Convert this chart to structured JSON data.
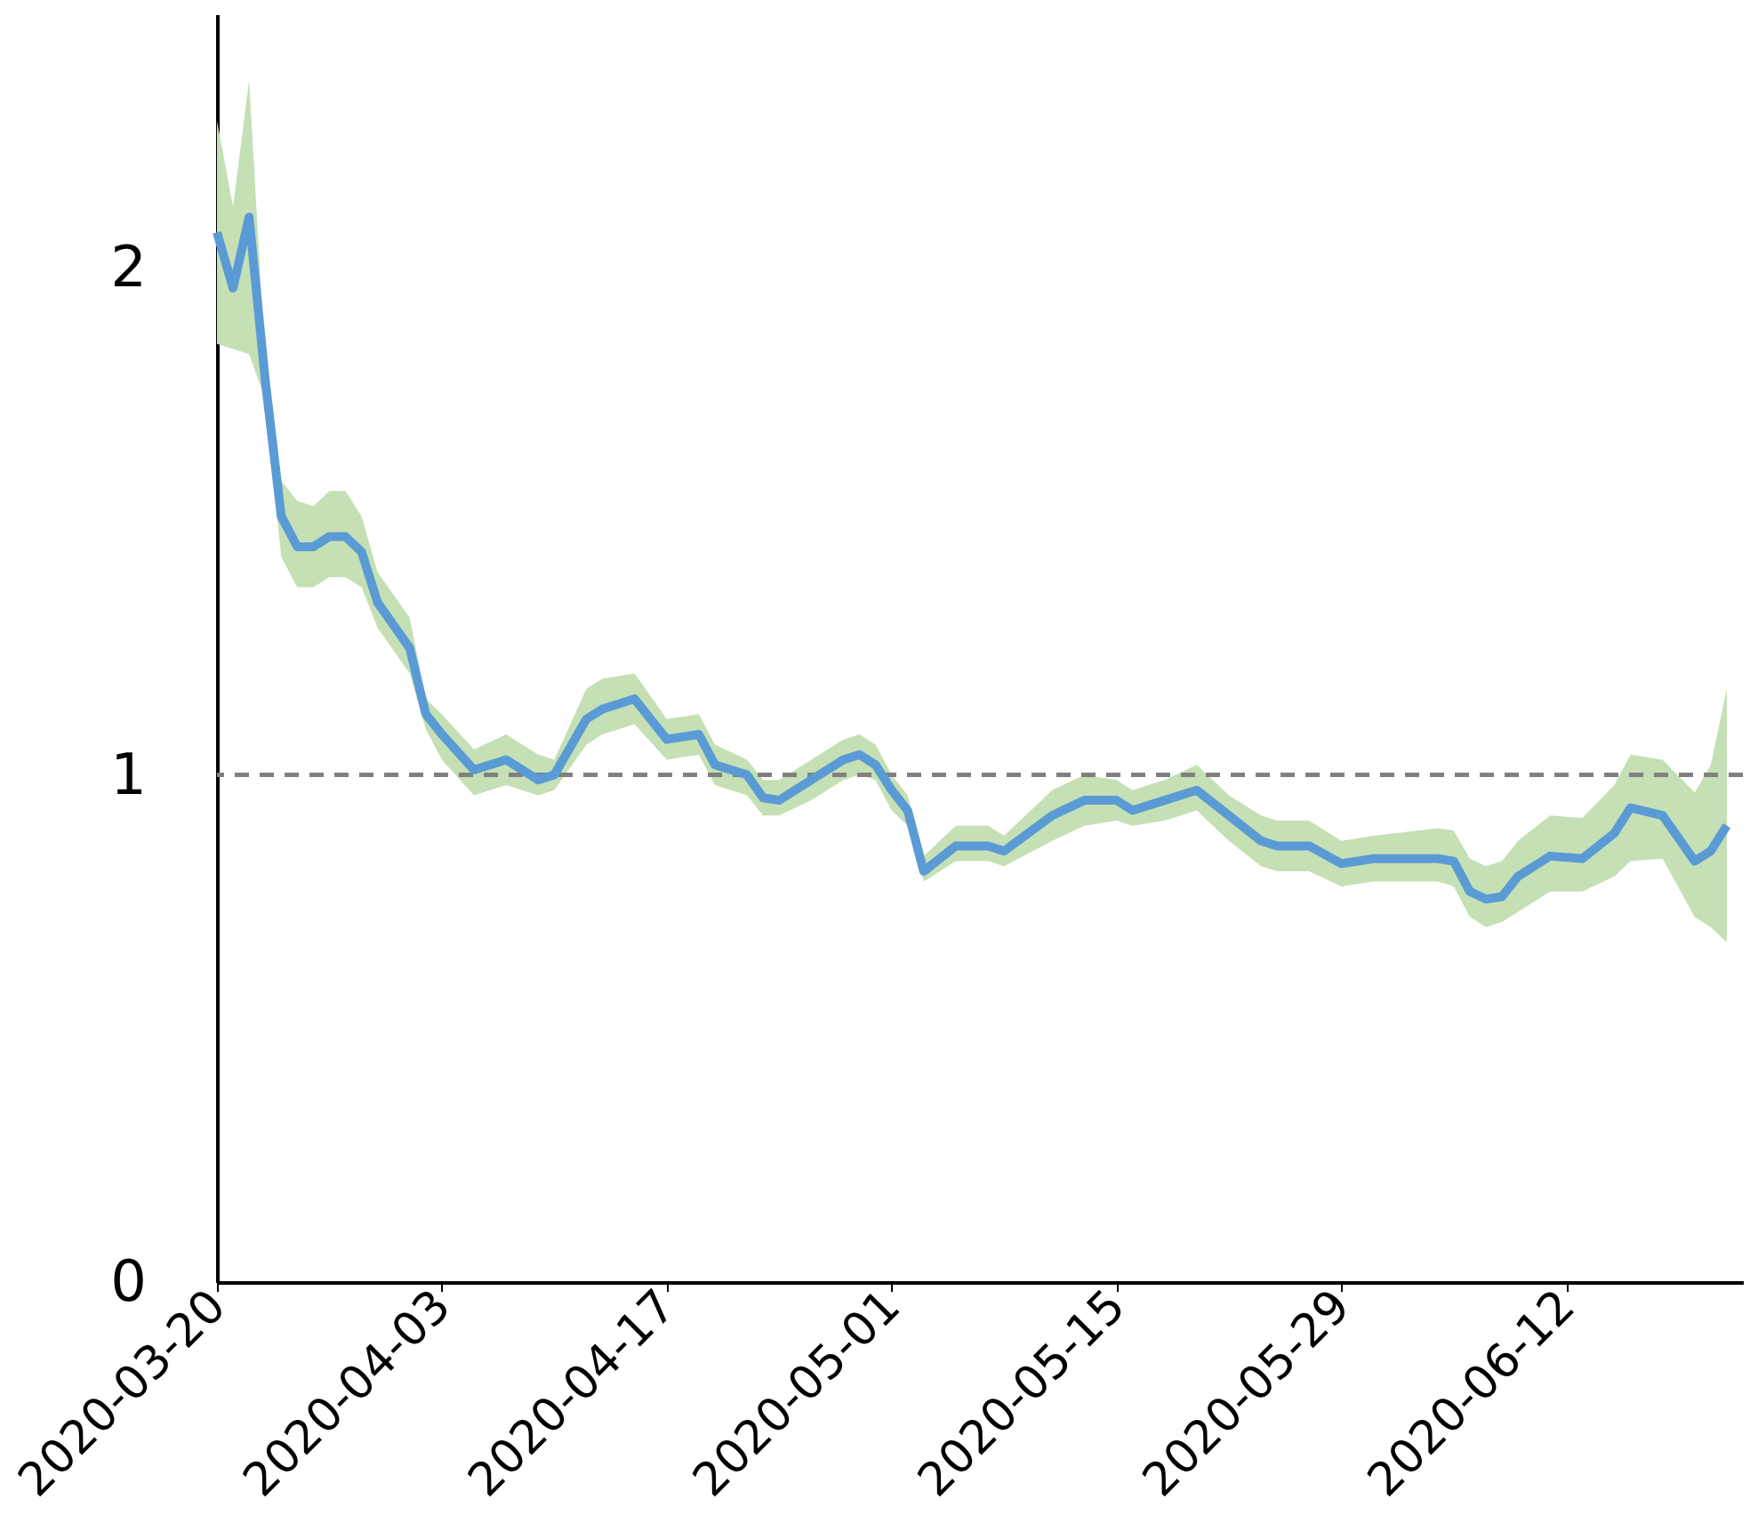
{
  "chart_data": {
    "type": "line",
    "xlim": [
      "2020-03-20",
      "2020-06-23"
    ],
    "ylim": [
      0,
      2.5
    ],
    "yticks": [
      0,
      1,
      2
    ],
    "xticks": [
      "2020-03-20",
      "2020-04-03",
      "2020-04-17",
      "2020-05-01",
      "2020-05-15",
      "2020-05-29",
      "2020-06-12"
    ],
    "grid": false,
    "marker": "none",
    "line_style": "solid",
    "ref_lines": [
      {
        "axis": "y",
        "value": 1,
        "color": "#808080",
        "line_style": "dashed"
      }
    ],
    "series": [
      {
        "color": "#5b9bd5",
        "x": [
          "2020-03-20",
          "2020-03-21",
          "2020-03-22",
          "2020-03-23",
          "2020-03-24",
          "2020-03-25",
          "2020-03-26",
          "2020-03-27",
          "2020-03-28",
          "2020-03-29",
          "2020-03-30",
          "2020-04-01",
          "2020-04-02",
          "2020-04-03",
          "2020-04-05",
          "2020-04-07",
          "2020-04-09",
          "2020-04-10",
          "2020-04-12",
          "2020-04-13",
          "2020-04-15",
          "2020-04-17",
          "2020-04-19",
          "2020-04-20",
          "2020-04-22",
          "2020-04-23",
          "2020-04-24",
          "2020-04-26",
          "2020-04-28",
          "2020-04-29",
          "2020-04-30",
          "2020-05-01",
          "2020-05-02",
          "2020-05-03",
          "2020-05-05",
          "2020-05-07",
          "2020-05-08",
          "2020-05-11",
          "2020-05-13",
          "2020-05-15",
          "2020-05-16",
          "2020-05-18",
          "2020-05-20",
          "2020-05-22",
          "2020-05-24",
          "2020-05-25",
          "2020-05-27",
          "2020-05-29",
          "2020-05-31",
          "2020-06-04",
          "2020-06-05",
          "2020-06-06",
          "2020-06-07",
          "2020-06-08",
          "2020-06-09",
          "2020-06-11",
          "2020-06-13",
          "2020-06-15",
          "2020-06-16",
          "2020-06-18",
          "2020-06-20",
          "2020-06-21",
          "2020-06-22"
        ],
        "values": [
          2.07,
          1.96,
          2.1,
          1.78,
          1.51,
          1.45,
          1.45,
          1.47,
          1.47,
          1.44,
          1.34,
          1.25,
          1.12,
          1.08,
          1.01,
          1.03,
          0.99,
          1.0,
          1.11,
          1.13,
          1.15,
          1.07,
          1.08,
          1.02,
          1.0,
          0.955,
          0.95,
          0.99,
          1.03,
          1.04,
          1.02,
          0.97,
          0.93,
          0.81,
          0.86,
          0.86,
          0.85,
          0.92,
          0.95,
          0.95,
          0.93,
          0.95,
          0.97,
          0.92,
          0.87,
          0.86,
          0.86,
          0.825,
          0.835,
          0.835,
          0.83,
          0.77,
          0.755,
          0.76,
          0.8,
          0.84,
          0.835,
          0.885,
          0.935,
          0.92,
          0.83,
          0.85,
          0.9
        ],
        "lower": [
          1.85,
          1.84,
          1.83,
          1.74,
          1.43,
          1.37,
          1.37,
          1.39,
          1.39,
          1.37,
          1.29,
          1.2,
          1.09,
          1.03,
          0.96,
          0.98,
          0.96,
          0.97,
          1.06,
          1.08,
          1.1,
          1.03,
          1.04,
          0.98,
          0.96,
          0.92,
          0.92,
          0.95,
          0.99,
          1.0,
          0.99,
          0.93,
          0.9,
          0.79,
          0.83,
          0.83,
          0.82,
          0.87,
          0.9,
          0.91,
          0.9,
          0.91,
          0.93,
          0.87,
          0.82,
          0.81,
          0.81,
          0.78,
          0.79,
          0.79,
          0.78,
          0.72,
          0.7,
          0.71,
          0.73,
          0.77,
          0.77,
          0.8,
          0.83,
          0.835,
          0.72,
          0.7,
          0.67
        ],
        "upper": [
          2.29,
          2.12,
          2.37,
          1.82,
          1.58,
          1.54,
          1.53,
          1.56,
          1.56,
          1.51,
          1.4,
          1.31,
          1.15,
          1.12,
          1.05,
          1.08,
          1.04,
          1.03,
          1.17,
          1.19,
          1.2,
          1.11,
          1.12,
          1.06,
          1.03,
          0.99,
          0.99,
          1.03,
          1.07,
          1.08,
          1.06,
          1.0,
          0.96,
          0.84,
          0.9,
          0.9,
          0.88,
          0.97,
          1.0,
          0.99,
          0.97,
          0.99,
          1.02,
          0.96,
          0.92,
          0.91,
          0.91,
          0.87,
          0.88,
          0.895,
          0.89,
          0.835,
          0.82,
          0.83,
          0.87,
          0.92,
          0.915,
          0.98,
          1.04,
          1.03,
          0.965,
          1.02,
          1.17
        ]
      }
    ]
  }
}
